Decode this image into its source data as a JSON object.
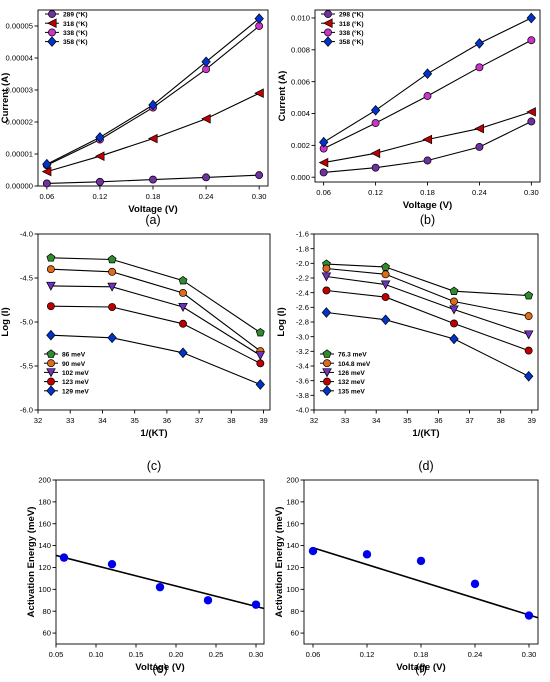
{
  "chart_data": [
    {
      "panel": "(a)",
      "type": "line",
      "xlabel": "Voltage (V)",
      "ylabel": "Current (A)",
      "xlim": [
        0.05,
        0.31
      ],
      "ylim": [
        0,
        5.5e-05
      ],
      "xticks": [
        0.06,
        0.12,
        0.18,
        0.24,
        0.3
      ],
      "xticklabels": [
        "0.06",
        "0.12",
        "0.18",
        "0.24",
        "0.30"
      ],
      "yticks": [
        0,
        1e-05,
        2e-05,
        3e-05,
        4e-05,
        5e-05
      ],
      "yticklabels": [
        "0.00000",
        "0.00001",
        "0.00002",
        "0.00003",
        "0.00004",
        "0.00005"
      ],
      "legend_position": "top-left",
      "x": [
        0.06,
        0.12,
        0.18,
        0.24,
        0.3
      ],
      "series": [
        {
          "name": "289 (°K)",
          "color": "#7030a0",
          "marker": "circle",
          "values": [
            8e-07,
            1.3e-06,
            2e-06,
            2.7e-06,
            3.4e-06
          ]
        },
        {
          "name": "318 (°K)",
          "color": "#c00000",
          "marker": "triangle-left",
          "values": [
            4.5e-06,
            9.3e-06,
            1.48e-05,
            2.1e-05,
            2.9e-05
          ]
        },
        {
          "name": "338 (°K)",
          "color": "#cc33cc",
          "marker": "circle",
          "values": [
            6.5e-06,
            1.45e-05,
            2.45e-05,
            3.65e-05,
            5e-05
          ]
        },
        {
          "name": "358 (°K)",
          "color": "#0033cc",
          "marker": "diamond",
          "values": [
            6.8e-06,
            1.52e-05,
            2.53e-05,
            3.88e-05,
            5.23e-05
          ]
        }
      ]
    },
    {
      "panel": "(b)",
      "type": "line",
      "xlabel": "Voltage (V)",
      "ylabel": "Current (A)",
      "xlim": [
        0.05,
        0.31
      ],
      "ylim": [
        -0.0003,
        0.0105
      ],
      "xticks": [
        0.06,
        0.12,
        0.18,
        0.24,
        0.3
      ],
      "xticklabels": [
        "0.06",
        "0.12",
        "0.18",
        "0.24",
        "0.30"
      ],
      "yticks": [
        0,
        0.002,
        0.004,
        0.006,
        0.008,
        0.01
      ],
      "yticklabels": [
        "0.000",
        "0.002",
        "0.004",
        "0.006",
        "0.008",
        "0.010"
      ],
      "legend_position": "top-left",
      "x": [
        0.06,
        0.12,
        0.18,
        0.24,
        0.3
      ],
      "series": [
        {
          "name": "298 (°K)",
          "color": "#7030a0",
          "marker": "circle",
          "values": [
            0.0003,
            0.0006,
            0.00105,
            0.0019,
            0.0035
          ]
        },
        {
          "name": "318 (°K)",
          "color": "#c00000",
          "marker": "triangle-left",
          "values": [
            0.00092,
            0.0015,
            0.00237,
            0.00305,
            0.0041
          ]
        },
        {
          "name": "338 (°K)",
          "color": "#cc33cc",
          "marker": "circle",
          "values": [
            0.0018,
            0.0034,
            0.0051,
            0.0069,
            0.0086
          ]
        },
        {
          "name": "358 (°K)",
          "color": "#0033cc",
          "marker": "diamond",
          "values": [
            0.0022,
            0.0042,
            0.0065,
            0.0084,
            0.01
          ]
        }
      ]
    },
    {
      "panel": "(c)",
      "type": "line",
      "xlabel": "1/(KT)",
      "ylabel": "Log (I)",
      "xlim": [
        32,
        39.2
      ],
      "ylim": [
        -6.0,
        -4.0
      ],
      "xticks": [
        32,
        33,
        34,
        35,
        36,
        37,
        38,
        39
      ],
      "xticklabels": [
        "32",
        "33",
        "34",
        "35",
        "36",
        "37",
        "38",
        "39"
      ],
      "yticks": [
        -6.0,
        -5.5,
        -5.0,
        -4.5,
        -4.0
      ],
      "yticklabels": [
        "-6.0",
        "-5.5",
        "-5.0",
        "-4.5",
        "-4.0"
      ],
      "legend_position": "bottom-left",
      "x": [
        32.4,
        34.3,
        36.5,
        38.9
      ],
      "series": [
        {
          "name": "86 meV",
          "color": "#2e8b2e",
          "marker": "pentagon",
          "values": [
            -4.27,
            -4.29,
            -4.53,
            -5.12
          ]
        },
        {
          "name": "90 meV",
          "color": "#e06c1a",
          "marker": "circle",
          "values": [
            -4.4,
            -4.43,
            -4.67,
            -5.33
          ]
        },
        {
          "name": "102 meV",
          "color": "#7030c0",
          "marker": "triangle-down",
          "values": [
            -4.59,
            -4.6,
            -4.83,
            -5.38
          ]
        },
        {
          "name": "123 meV",
          "color": "#c00000",
          "marker": "circle",
          "values": [
            -4.82,
            -4.83,
            -5.02,
            -5.47
          ]
        },
        {
          "name": "129 meV",
          "color": "#0033cc",
          "marker": "diamond",
          "values": [
            -5.15,
            -5.18,
            -5.35,
            -5.71
          ]
        }
      ]
    },
    {
      "panel": "(d)",
      "type": "line",
      "xlabel": "1/(KT)",
      "ylabel": "Log (I)",
      "xlim": [
        32,
        39.2
      ],
      "ylim": [
        -4.0,
        -1.6
      ],
      "xticks": [
        32,
        33,
        34,
        35,
        36,
        37,
        38,
        39
      ],
      "xticklabels": [
        "32",
        "33",
        "34",
        "35",
        "36",
        "37",
        "38",
        "39"
      ],
      "yticks": [
        -4.0,
        -3.8,
        -3.6,
        -3.4,
        -3.2,
        -3.0,
        -2.8,
        -2.6,
        -2.4,
        -2.2,
        -2.0,
        -1.8,
        -1.6
      ],
      "yticklabels": [
        "-4.0",
        "-3.8",
        "-3.6",
        "-3.4",
        "-3.2",
        "-3.0",
        "-2.8",
        "-2.6",
        "-2.4",
        "-2.2",
        "-2.0",
        "-1.8",
        "-1.6"
      ],
      "legend_position": "bottom-left",
      "x": [
        32.4,
        34.3,
        36.5,
        38.9
      ],
      "series": [
        {
          "name": "76.3 meV",
          "color": "#2e8b2e",
          "marker": "pentagon",
          "values": [
            -2.01,
            -2.05,
            -2.38,
            -2.44
          ]
        },
        {
          "name": "104.8 meV",
          "color": "#e06c1a",
          "marker": "circle",
          "values": [
            -2.07,
            -2.15,
            -2.52,
            -2.72
          ]
        },
        {
          "name": "126 meV",
          "color": "#7030c0",
          "marker": "triangle-down",
          "values": [
            -2.18,
            -2.29,
            -2.63,
            -2.97
          ]
        },
        {
          "name": "132 meV",
          "color": "#c00000",
          "marker": "circle",
          "values": [
            -2.37,
            -2.46,
            -2.82,
            -3.19
          ]
        },
        {
          "name": "135 meV",
          "color": "#0033cc",
          "marker": "diamond",
          "values": [
            -2.67,
            -2.77,
            -3.03,
            -3.54
          ]
        }
      ]
    },
    {
      "panel": "(e)",
      "type": "scatter",
      "xlabel": "Voltage (V)",
      "ylabel": "Activation Energy (meV)",
      "xlim": [
        0.05,
        0.31
      ],
      "ylim": [
        50,
        200
      ],
      "xticks": [
        0.05,
        0.1,
        0.15,
        0.2,
        0.25,
        0.3
      ],
      "xticklabels": [
        "0.05",
        "0.10",
        "0.15",
        "0.20",
        "0.25",
        "0.30"
      ],
      "yticks": [
        60,
        80,
        100,
        120,
        140,
        160,
        180,
        200
      ],
      "yticklabels": [
        "60",
        "80",
        "100",
        "120",
        "140",
        "160",
        "180",
        "200"
      ],
      "color": "#0000ee",
      "x": [
        0.06,
        0.12,
        0.18,
        0.24,
        0.3
      ],
      "values": [
        129,
        123,
        102,
        90,
        86
      ],
      "fit": {
        "x": [
          0.05,
          0.31
        ],
        "values": [
          131,
          82.5
        ]
      }
    },
    {
      "panel": "(f)",
      "type": "scatter",
      "xlabel": "Voltage (V)",
      "ylabel": "Activation Energy (meV)",
      "xlim": [
        0.05,
        0.31
      ],
      "ylim": [
        50,
        200
      ],
      "xticks": [
        0.06,
        0.12,
        0.18,
        0.24,
        0.3
      ],
      "xticklabels": [
        "0.06",
        "0.12",
        "0.18",
        "0.24",
        "0.30"
      ],
      "yticks": [
        60,
        80,
        100,
        120,
        140,
        160,
        180,
        200
      ],
      "yticklabels": [
        "60",
        "80",
        "100",
        "120",
        "140",
        "160",
        "180",
        "200"
      ],
      "color": "#0000ee",
      "x": [
        0.06,
        0.12,
        0.18,
        0.24,
        0.3
      ],
      "values": [
        135,
        132,
        126,
        105,
        76
      ],
      "fit": {
        "x": [
          0.06,
          0.31
        ],
        "values": [
          138,
          74
        ]
      }
    }
  ]
}
